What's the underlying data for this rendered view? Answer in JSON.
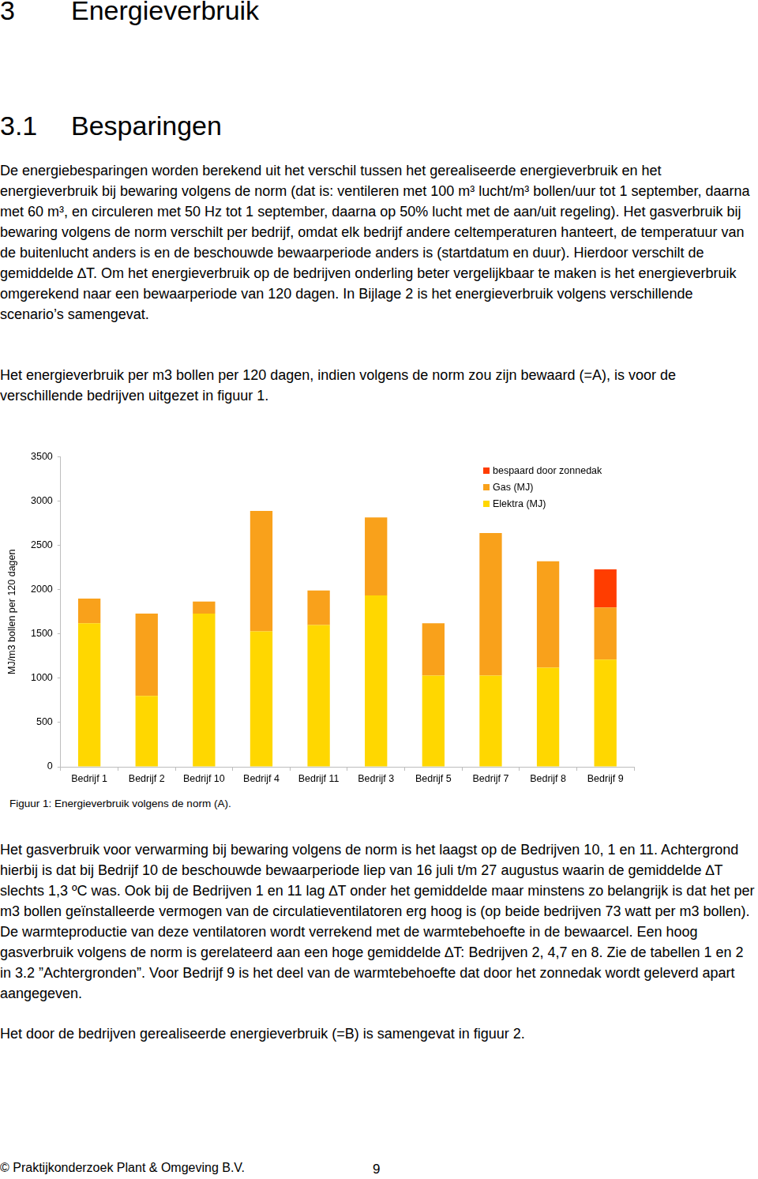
{
  "heading": {
    "number": "3",
    "title": "Energieverbruik"
  },
  "subheading": {
    "number": "3.1",
    "title": "Besparingen"
  },
  "paragraphs_before": [
    "De energiebesparingen worden berekend uit het verschil tussen het gerealiseerde energieverbruik en het energieverbruik bij bewaring volgens de norm (dat is: ventileren met 100 m³ lucht/m³ bollen/uur tot 1 september, daarna met 60 m³, en circuleren met 50 Hz tot 1 september, daarna op 50% lucht met de aan/uit regeling). Het gasverbruik bij bewaring volgens de norm verschilt per bedrijf, omdat elk bedrijf andere celtemperaturen hanteert, de temperatuur van de buitenlucht anders is en de beschouwde bewaarperiode anders is (startdatum en duur). Hierdoor verschilt de gemiddelde ∆T. Om het energieverbruik op de bedrijven onderling beter vergelijkbaar te maken is het energieverbruik omgerekend naar een bewaarperiode van 120 dagen. In Bijlage 2 is het energieverbruik volgens verschillende scenario’s samengevat.",
    "Het energieverbruik per m3 bollen per 120 dagen, indien volgens de norm zou zijn bewaard (=A), is voor de verschillende bedrijven uitgezet in figuur 1."
  ],
  "chart_data": {
    "type": "bar",
    "stacked": true,
    "categories": [
      "Bedrijf 1",
      "Bedrijf 2",
      "Bedrijf 10",
      "Bedrijf 4",
      "Bedrijf 11",
      "Bedrijf 3",
      "Bedrijf 5",
      "Bedrijf 7",
      "Bedrijf 8",
      "Bedrijf 9"
    ],
    "series": [
      {
        "name": "Elektra (MJ)",
        "color": "#ffd700",
        "values": [
          1620,
          800,
          1730,
          1530,
          1600,
          1935,
          1030,
          1030,
          1120,
          1210
        ]
      },
      {
        "name": "Gas (MJ)",
        "color": "#f9a11b",
        "values": [
          280,
          930,
          135,
          1360,
          390,
          880,
          590,
          1610,
          1200,
          590
        ]
      },
      {
        "name": "bespaard door zonnedak",
        "color": "#ff3d00",
        "values": [
          null,
          null,
          null,
          null,
          null,
          null,
          null,
          null,
          null,
          430
        ]
      }
    ],
    "y_label": "MJ/m3 bollen per 120 dagen",
    "ylim": [
      0,
      3500
    ],
    "yticks": [
      0,
      500,
      1000,
      1500,
      2000,
      2500,
      3000,
      3500
    ],
    "grid": false,
    "legend": "top-right"
  },
  "caption": "Figuur 1: Energieverbruik volgens de norm (A).",
  "paragraphs_after": [
    "Het gasverbruik voor verwarming bij bewaring volgens de norm is het laagst op de Bedrijven 10, 1 en 11. Achtergrond hierbij is dat bij Bedrijf 10 de beschouwde bewaarperiode liep van 16 juli t/m 27 augustus waarin de gemiddelde ∆T slechts 1,3 ºC was. Ook bij de Bedrijven 1 en 11 lag ∆T onder het gemiddelde maar minstens zo belangrijk is dat het per m3 bollen geïnstalleerde vermogen van de circulatieventilatoren erg hoog is (op beide bedrijven 73 watt per m3 bollen). De warmteproductie van deze ventilatoren wordt verrekend met de warmtebehoefte in de bewaarcel. Een hoog gasverbruik volgens de norm is gerelateerd aan een hoge gemiddelde ∆T: Bedrijven 2, 4,7 en 8. Zie de tabellen 1 en 2 in 3.2 ”Achtergronden”. Voor Bedrijf 9 is het deel van de warmtebehoefte dat door het zonnedak wordt geleverd apart aangegeven.",
    "Het door de bedrijven gerealiseerde energieverbruik (=B) is samengevat in figuur 2."
  ],
  "footer": {
    "copyright": "© Praktijkonderzoek Plant & Omgeving B.V.",
    "page": "9"
  }
}
